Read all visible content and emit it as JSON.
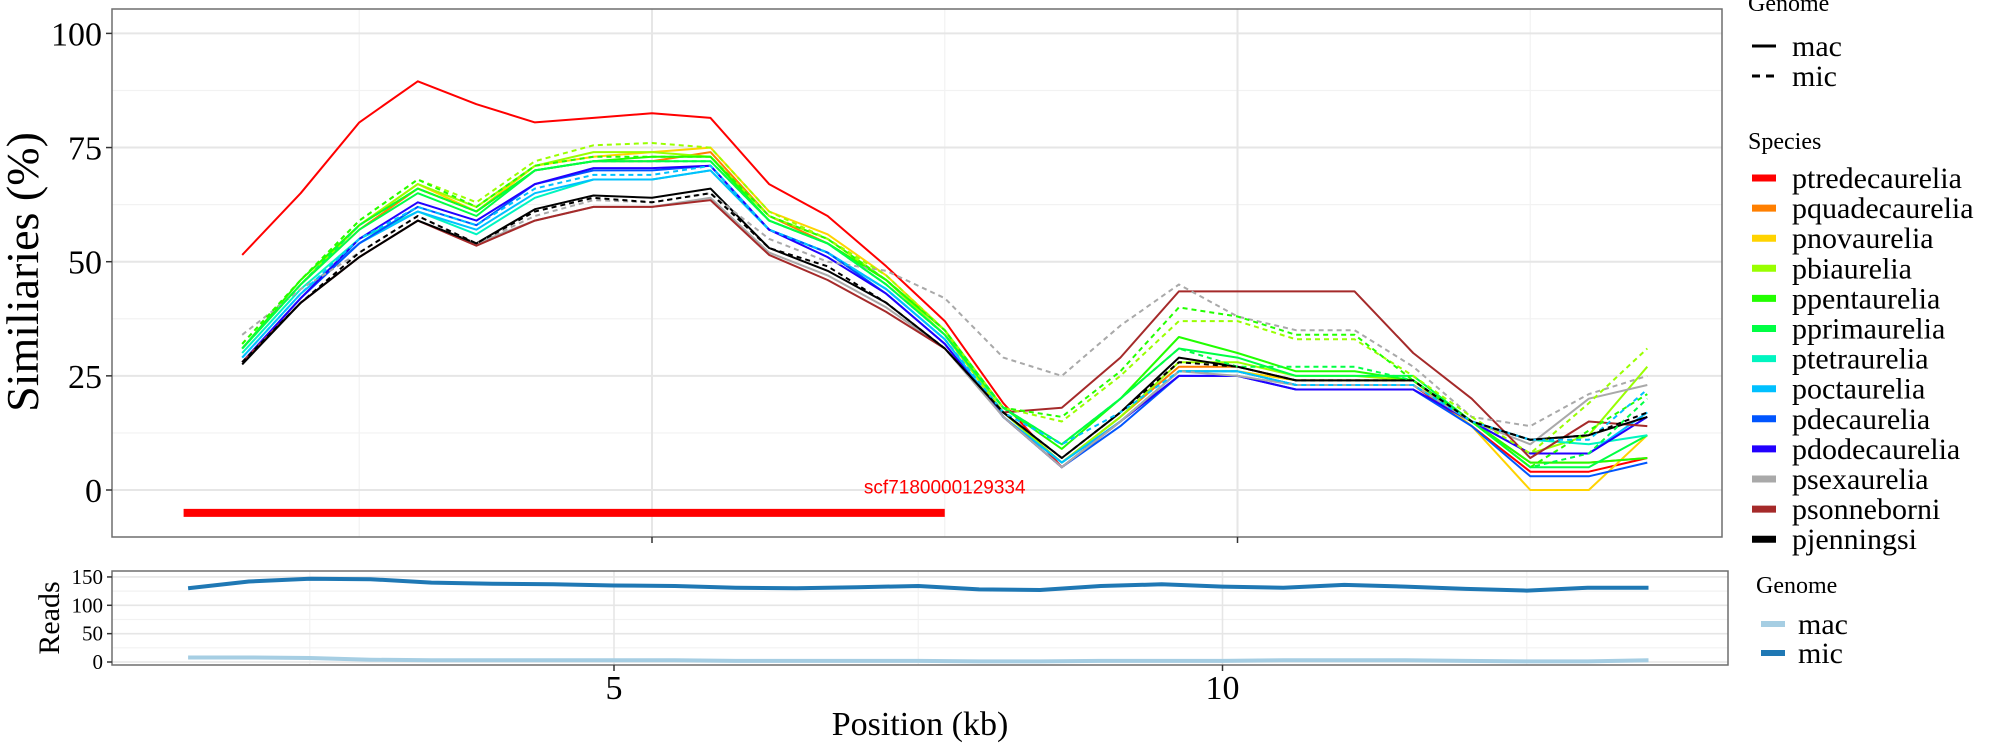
{
  "chart_data": [
    {
      "type": "line",
      "title": "",
      "xlabel": "",
      "ylabel": "Similiaries (%)",
      "xlim": [
        0.4,
        14.15
      ],
      "ylim": [
        -10.3,
        105.3
      ],
      "xticks": [
        5,
        10
      ],
      "yticks": [
        0,
        25,
        50,
        75,
        100
      ],
      "ytick_labels": [
        "0",
        "25",
        "50",
        "75",
        "100"
      ],
      "grid": true,
      "x": [
        1.5,
        2,
        2.5,
        3,
        3.5,
        4,
        4.5,
        5,
        5.5,
        6,
        6.5,
        7,
        7.5,
        8,
        8.5,
        9,
        9.5,
        10,
        10.5,
        11,
        11.5,
        12,
        12.5,
        13,
        13.5
      ],
      "series": [
        {
          "species": "ptredecaurelia",
          "genome": "mac",
          "color": "#ff0000",
          "values": [
            51.5,
            65,
            80.5,
            89.5,
            84.5,
            80.5,
            81.5,
            82.5,
            81.5,
            67,
            60,
            49,
            37,
            19,
            5,
            15,
            26,
            26,
            23,
            23,
            23,
            14,
            4,
            4,
            7
          ]
        },
        {
          "species": "pquadecaurelia",
          "genome": "mac",
          "color": "#ff7f00",
          "values": [
            31,
            45,
            57,
            66,
            61,
            70,
            72,
            72,
            74,
            60,
            54,
            46,
            34,
            17,
            6,
            16,
            27,
            27,
            24,
            24,
            24,
            15,
            6,
            6,
            7
          ]
        },
        {
          "species": "pnovaurelia",
          "genome": "mac",
          "color": "#ffd300",
          "values": [
            31,
            45,
            58,
            67,
            61,
            71,
            73,
            74,
            75,
            61,
            56,
            47,
            35,
            16,
            5,
            15,
            26,
            26,
            24,
            24,
            24,
            14,
            0,
            0,
            12
          ]
        },
        {
          "species": "pbiaurelia",
          "genome": "mac",
          "color": "#99ff00",
          "values": [
            31,
            45,
            58,
            67,
            62,
            71,
            74,
            74,
            73,
            60,
            55,
            46,
            34,
            17,
            6,
            16,
            28,
            28,
            25,
            25,
            24,
            15,
            8,
            12,
            27
          ]
        },
        {
          "species": "ppentaurelia",
          "genome": "mac",
          "color": "#22ff00",
          "values": [
            31,
            46,
            58,
            66,
            61,
            70,
            72,
            73,
            73,
            59,
            54,
            46,
            35,
            18,
            9,
            20,
            33.5,
            30,
            26,
            26,
            24,
            15,
            6,
            6,
            7
          ]
        },
        {
          "species": "pprimaurelia",
          "genome": "mac",
          "color": "#00ff44",
          "values": [
            31,
            45,
            57,
            65,
            60,
            70,
            72,
            72,
            72,
            59,
            54,
            45,
            34,
            18,
            10,
            20,
            31,
            29,
            25,
            25,
            25,
            15,
            5,
            5,
            12
          ]
        },
        {
          "species": "ptetraurelia",
          "genome": "mac",
          "color": "#00f5c0",
          "values": [
            30,
            44,
            55,
            61,
            56,
            64,
            68,
            68,
            70,
            57,
            52,
            44,
            33,
            16,
            6,
            15,
            26,
            26,
            23,
            23,
            23,
            15,
            11,
            10,
            12
          ]
        },
        {
          "species": "poctaurelia",
          "genome": "mac",
          "color": "#00c0ff",
          "values": [
            29,
            43,
            54,
            61,
            57,
            65,
            68,
            68,
            70,
            57,
            52,
            44,
            33,
            16,
            6,
            15,
            26,
            26,
            23,
            23,
            23,
            15,
            8,
            8,
            17
          ]
        },
        {
          "species": "pdecaurelia",
          "genome": "mac",
          "color": "#0055ff",
          "values": [
            28,
            42,
            54,
            62,
            58,
            67,
            70,
            70,
            71,
            57,
            52,
            43,
            32,
            16,
            5,
            14,
            25,
            25,
            22,
            22,
            22,
            14,
            3,
            3,
            6
          ]
        },
        {
          "species": "pdodecaurelia",
          "genome": "mac",
          "color": "#2200ff",
          "values": [
            28,
            42,
            55,
            63,
            59,
            67,
            70.5,
            70.5,
            71,
            57,
            51,
            43,
            32,
            16,
            5,
            15,
            25,
            25,
            22,
            22,
            22,
            15,
            8,
            8,
            16
          ]
        },
        {
          "species": "psexaurelia",
          "genome": "mac",
          "color": "#a9a9a9",
          "values": [
            28,
            41,
            51,
            59,
            54,
            59,
            62,
            62,
            64,
            52,
            47,
            40,
            31,
            16,
            5,
            15,
            26,
            25,
            23,
            23,
            23,
            15,
            10,
            20,
            23
          ]
        },
        {
          "species": "psonneborni",
          "genome": "mac",
          "color": "#a52a2a",
          "values": [
            28,
            41,
            51,
            59,
            53.5,
            59,
            62,
            62,
            63.5,
            51.5,
            46,
            39,
            31,
            17,
            18,
            29,
            43.5,
            43.5,
            43.5,
            43.5,
            30,
            20,
            7,
            15,
            14
          ]
        },
        {
          "species": "pjenningsi",
          "genome": "mac",
          "color": "#000000",
          "values": [
            27.5,
            41,
            51,
            59,
            54,
            61.5,
            64.5,
            64,
            66,
            53,
            48,
            41,
            31,
            17,
            7,
            17,
            29,
            27,
            24,
            24,
            24,
            15,
            11,
            12,
            16
          ]
        },
        {
          "species": "psexaurelia",
          "genome": "mic",
          "color": "#a9a9a9",
          "values": [
            34,
            44,
            52,
            60,
            54,
            60,
            63.5,
            63,
            65,
            55,
            50,
            48,
            42,
            29,
            25,
            36,
            45,
            38,
            35,
            35,
            27,
            16,
            14,
            21,
            25
          ]
        },
        {
          "species": "pbiaurelia",
          "genome": "mic",
          "color": "#99ff00",
          "values": [
            32,
            46,
            59,
            68,
            63,
            72,
            75.5,
            76,
            75,
            61,
            55,
            47,
            35,
            18,
            15,
            25,
            37,
            37,
            33,
            33,
            25,
            16,
            8,
            19,
            31
          ]
        },
        {
          "species": "ppentaurelia",
          "genome": "mic",
          "color": "#22ff00",
          "values": [
            32,
            46,
            59,
            68,
            62,
            71,
            73,
            73,
            73,
            60,
            55,
            46,
            35,
            18,
            16,
            26,
            40,
            38,
            34,
            34,
            24,
            15,
            5,
            13,
            21
          ]
        },
        {
          "species": "pprimaurelia",
          "genome": "mic",
          "color": "#00ff44",
          "values": [
            31,
            45,
            58,
            66,
            61,
            70,
            72,
            72,
            72,
            59,
            54,
            45,
            34,
            18,
            10,
            20,
            31,
            27,
            27,
            27,
            24,
            15,
            5,
            8,
            20
          ]
        },
        {
          "species": "poctaurelia",
          "genome": "mic",
          "color": "#00c0ff",
          "values": [
            29,
            43,
            55,
            62,
            58,
            66,
            69,
            69,
            71,
            57,
            52,
            44,
            33,
            17,
            10,
            17,
            26,
            26,
            23,
            23,
            23,
            15,
            11,
            11,
            22
          ]
        },
        {
          "species": "pjenningsi",
          "genome": "mic",
          "color": "#000000",
          "values": [
            28,
            41,
            52,
            60,
            54,
            61,
            64,
            63,
            65,
            53,
            49,
            41,
            31,
            17,
            7,
            17,
            28,
            27,
            24,
            24,
            24,
            15,
            11,
            12,
            17
          ]
        }
      ],
      "annotation": {
        "label": "scf7180000129334",
        "x_start": 1.0,
        "x_end": 7.5,
        "y": -5,
        "color": "#ff0000"
      },
      "legend_genome": {
        "title": "Genome",
        "items": [
          {
            "label": "mac",
            "dash": "solid"
          },
          {
            "label": "mic",
            "dash": "dashed"
          }
        ]
      },
      "legend_species": {
        "title": "Species",
        "items": [
          {
            "label": "ptredecaurelia",
            "color": "#ff0000"
          },
          {
            "label": "pquadecaurelia",
            "color": "#ff7f00"
          },
          {
            "label": "pnovaurelia",
            "color": "#ffd300"
          },
          {
            "label": "pbiaurelia",
            "color": "#99ff00"
          },
          {
            "label": "ppentaurelia",
            "color": "#22ff00"
          },
          {
            "label": "pprimaurelia",
            "color": "#00ff44"
          },
          {
            "label": "ptetraurelia",
            "color": "#00f5c0"
          },
          {
            "label": "poctaurelia",
            "color": "#00c0ff"
          },
          {
            "label": "pdecaurelia",
            "color": "#0055ff"
          },
          {
            "label": "pdodecaurelia",
            "color": "#2200ff"
          },
          {
            "label": "psexaurelia",
            "color": "#a9a9a9"
          },
          {
            "label": "psonneborni",
            "color": "#a52a2a"
          },
          {
            "label": "pjenningsi",
            "color": "#000000"
          }
        ]
      },
      "legend_placement": "right"
    },
    {
      "type": "line",
      "xlabel": "Position (kb)",
      "ylabel": "Reads",
      "xlim": [
        0.88,
        13.9
      ],
      "ylim": [
        -5,
        160
      ],
      "xticks": [
        5,
        10
      ],
      "xtick_labels": [
        "5",
        "10"
      ],
      "yticks": [
        0,
        50,
        100,
        150
      ],
      "ytick_labels": [
        "0",
        "50",
        "100",
        "150"
      ],
      "grid": true,
      "x": [
        1.5,
        2,
        2.5,
        3,
        3.5,
        4,
        4.5,
        5,
        5.5,
        6,
        6.5,
        7,
        7.5,
        8,
        8.5,
        9,
        9.5,
        10,
        10.5,
        11,
        11.5,
        12,
        12.5,
        13,
        13.5
      ],
      "series": [
        {
          "genome": "mac",
          "color": "#a6cee3",
          "values": [
            8,
            8,
            7,
            4,
            3,
            3,
            3,
            3,
            3,
            2,
            2,
            2,
            2,
            1,
            1,
            2,
            2,
            2,
            3,
            3,
            3,
            2,
            1,
            1,
            3
          ]
        },
        {
          "genome": "mic",
          "color": "#1f78b4",
          "values": [
            130,
            142,
            147,
            146,
            140,
            138,
            137,
            135,
            134,
            131,
            130,
            132,
            134,
            128,
            127,
            134,
            137,
            133,
            131,
            136,
            133,
            129,
            126,
            131,
            131
          ]
        }
      ],
      "legend": {
        "title": "Genome",
        "items": [
          {
            "label": "mac",
            "color": "#a6cee3"
          },
          {
            "label": "mic",
            "color": "#1f78b4"
          }
        ]
      },
      "legend_placement": "right"
    }
  ]
}
